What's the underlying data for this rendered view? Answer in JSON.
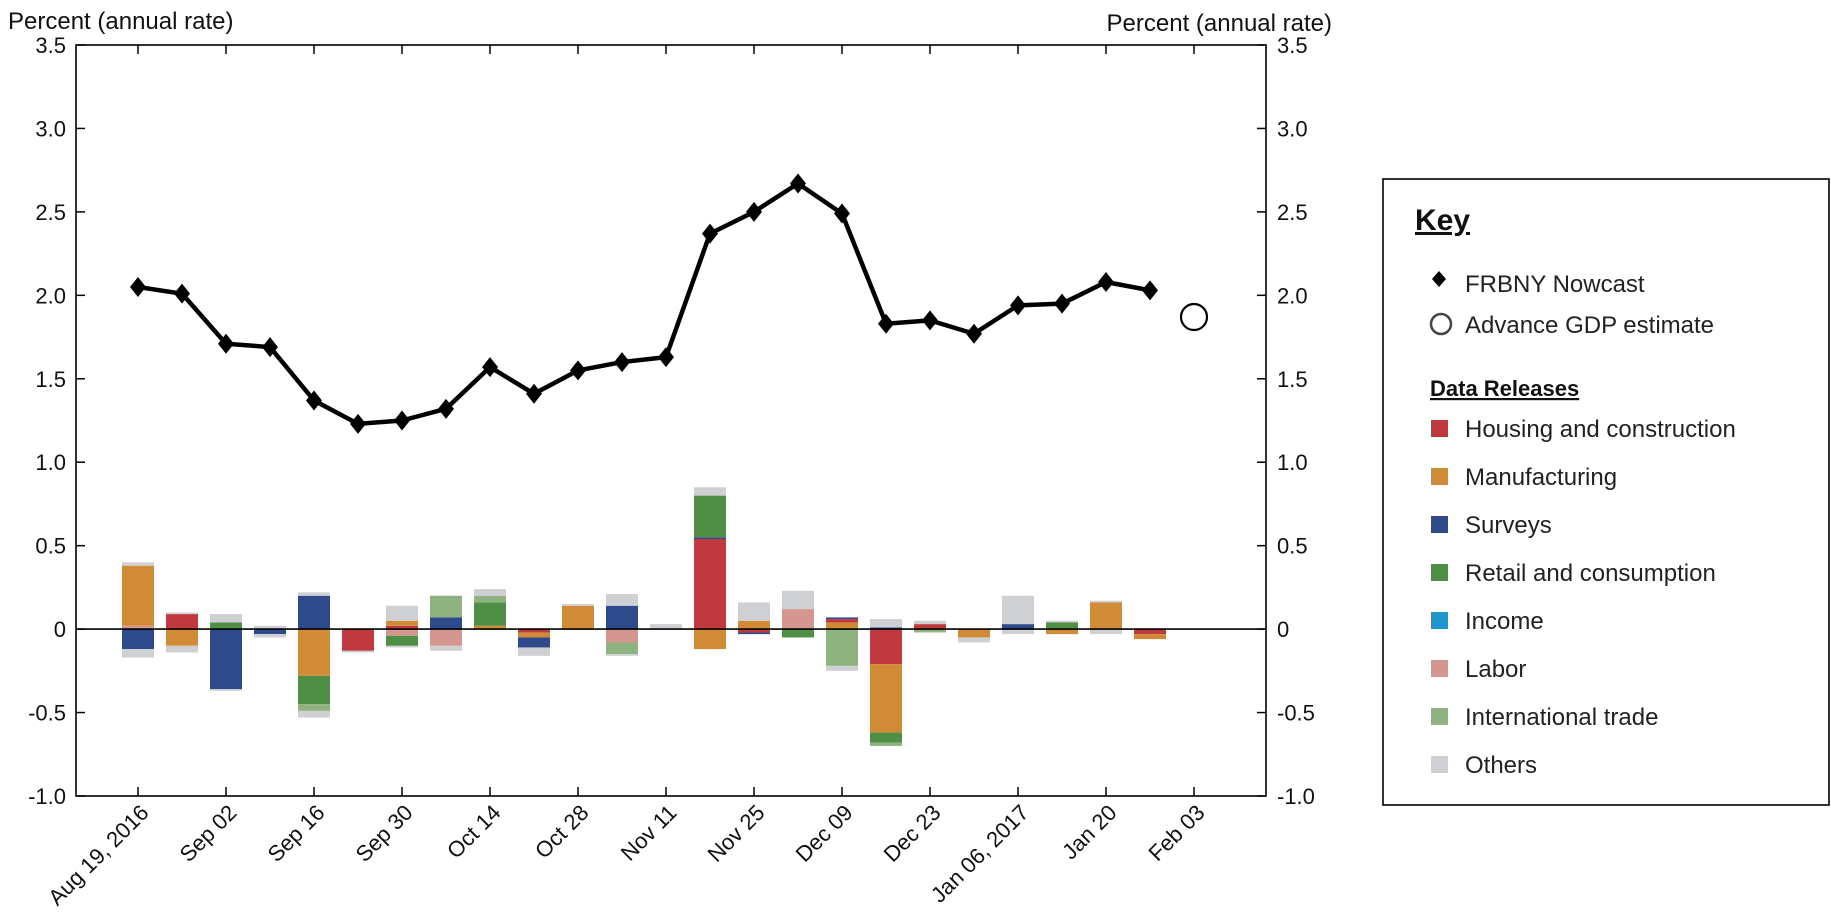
{
  "chart_data": {
    "type": "bar",
    "left_unit_label": "Percent (annual rate)",
    "right_unit_label": "Percent (annual rate)",
    "ylim": [
      -1.0,
      3.5
    ],
    "y_ticks": [
      3.5,
      3.0,
      2.5,
      2.0,
      1.5,
      1.0,
      0.5,
      0,
      -0.5,
      -1.0
    ],
    "y_tick_labels": [
      "3.5",
      "3.0",
      "2.5",
      "2.0",
      "1.5",
      "1.0",
      "0.5",
      "0",
      "-0.5",
      "-1.0"
    ],
    "x": [
      "Aug 19",
      "Aug 26",
      "Sep 02",
      "Sep 09",
      "Sep 16",
      "Sep 23",
      "Sep 30",
      "Oct 07",
      "Oct 14",
      "Oct 21",
      "Oct 28",
      "Nov 04",
      "Nov 11",
      "Nov 18",
      "Nov 25",
      "Dec 02",
      "Dec 09",
      "Dec 16",
      "Dec 23",
      "Dec 30",
      "Jan 06",
      "Jan 13",
      "Jan 20",
      "Jan 27",
      "Feb 03"
    ],
    "tick_labels": [
      "Aug 19, 2016",
      "Sep 02",
      "Sep 16",
      "Sep 30",
      "Oct 14",
      "Oct 28",
      "Nov 11",
      "Nov 25",
      "Dec 09",
      "Dec 23",
      "Jan 06, 2017",
      "Jan 20",
      "Feb 03"
    ],
    "tick_indices": [
      0,
      2,
      4,
      6,
      8,
      10,
      12,
      14,
      16,
      18,
      20,
      22,
      24
    ],
    "nowcast": {
      "name": "FRBNY Nowcast",
      "values": [
        2.05,
        2.01,
        1.71,
        1.69,
        1.37,
        1.23,
        1.25,
        1.32,
        1.57,
        1.41,
        1.55,
        1.6,
        1.63,
        2.37,
        2.5,
        2.67,
        2.49,
        1.83,
        1.85,
        1.77,
        1.94,
        1.95,
        2.08,
        2.03,
        null
      ],
      "color": "#000000"
    },
    "advance_gdp": {
      "name": "Advance GDP estimate",
      "x_index": 24,
      "value": 1.87
    },
    "stacks": [
      [
        {
          "c": "labor",
          "v": 0.02
        },
        {
          "c": "manufacturing",
          "v": 0.36
        },
        {
          "c": "others",
          "v": 0.02
        },
        {
          "c": "surveys",
          "v": -0.12
        },
        {
          "c": "others",
          "v": -0.05
        }
      ],
      [
        {
          "c": "housing",
          "v": 0.09
        },
        {
          "c": "others",
          "v": 0.01
        },
        {
          "c": "manufacturing",
          "v": -0.1
        },
        {
          "c": "others",
          "v": -0.04
        }
      ],
      [
        {
          "c": "retail",
          "v": 0.04
        },
        {
          "c": "others",
          "v": 0.05
        },
        {
          "c": "surveys",
          "v": -0.36
        },
        {
          "c": "others",
          "v": -0.01
        }
      ],
      [
        {
          "c": "others",
          "v": 0.02
        },
        {
          "c": "surveys",
          "v": -0.03
        },
        {
          "c": "others",
          "v": -0.02
        }
      ],
      [
        {
          "c": "surveys",
          "v": 0.2
        },
        {
          "c": "others",
          "v": 0.02
        },
        {
          "c": "manufacturing",
          "v": -0.28
        },
        {
          "c": "retail",
          "v": -0.17
        },
        {
          "c": "trade",
          "v": -0.04
        },
        {
          "c": "others",
          "v": -0.04
        }
      ],
      [
        {
          "c": "housing",
          "v": -0.13
        },
        {
          "c": "others",
          "v": -0.01
        }
      ],
      [
        {
          "c": "housing",
          "v": 0.02
        },
        {
          "c": "manufacturing",
          "v": 0.03
        },
        {
          "c": "others",
          "v": 0.09
        },
        {
          "c": "labor",
          "v": -0.04
        },
        {
          "c": "retail",
          "v": -0.06
        },
        {
          "c": "others",
          "v": -0.01
        }
      ],
      [
        {
          "c": "surveys",
          "v": 0.07
        },
        {
          "c": "trade",
          "v": 0.13
        },
        {
          "c": "labor",
          "v": -0.1
        },
        {
          "c": "others",
          "v": -0.03
        }
      ],
      [
        {
          "c": "manufacturing",
          "v": 0.02
        },
        {
          "c": "retail",
          "v": 0.14
        },
        {
          "c": "trade",
          "v": 0.04
        },
        {
          "c": "others",
          "v": 0.04
        }
      ],
      [
        {
          "c": "housing",
          "v": -0.02
        },
        {
          "c": "manufacturing",
          "v": -0.03
        },
        {
          "c": "surveys",
          "v": -0.06
        },
        {
          "c": "others",
          "v": -0.05
        }
      ],
      [
        {
          "c": "manufacturing",
          "v": 0.14
        },
        {
          "c": "others",
          "v": 0.01
        }
      ],
      [
        {
          "c": "surveys",
          "v": 0.14
        },
        {
          "c": "others",
          "v": 0.07
        },
        {
          "c": "labor",
          "v": -0.08
        },
        {
          "c": "trade",
          "v": -0.07
        },
        {
          "c": "others",
          "v": -0.01
        }
      ],
      [
        {
          "c": "others",
          "v": 0.03
        }
      ],
      [
        {
          "c": "housing",
          "v": 0.54
        },
        {
          "c": "surveys",
          "v": 0.01
        },
        {
          "c": "retail",
          "v": 0.25
        },
        {
          "c": "others",
          "v": 0.05
        },
        {
          "c": "manufacturing",
          "v": -0.12
        }
      ],
      [
        {
          "c": "manufacturing",
          "v": 0.05
        },
        {
          "c": "others",
          "v": 0.11
        },
        {
          "c": "housing",
          "v": -0.02
        },
        {
          "c": "surveys",
          "v": -0.01
        }
      ],
      [
        {
          "c": "labor",
          "v": 0.12
        },
        {
          "c": "others",
          "v": 0.11
        },
        {
          "c": "retail",
          "v": -0.05
        }
      ],
      [
        {
          "c": "manufacturing",
          "v": 0.04
        },
        {
          "c": "housing",
          "v": 0.02
        },
        {
          "c": "surveys",
          "v": 0.01
        },
        {
          "c": "trade",
          "v": -0.22
        },
        {
          "c": "others",
          "v": -0.03
        }
      ],
      [
        {
          "c": "surveys",
          "v": 0.01
        },
        {
          "c": "others",
          "v": 0.05
        },
        {
          "c": "housing",
          "v": -0.21
        },
        {
          "c": "manufacturing",
          "v": -0.41
        },
        {
          "c": "retail",
          "v": -0.06
        },
        {
          "c": "trade",
          "v": -0.02
        }
      ],
      [
        {
          "c": "housing",
          "v": 0.03
        },
        {
          "c": "others",
          "v": 0.02
        },
        {
          "c": "trade",
          "v": -0.02
        }
      ],
      [
        {
          "c": "manufacturing",
          "v": -0.05
        },
        {
          "c": "others",
          "v": -0.03
        }
      ],
      [
        {
          "c": "surveys",
          "v": 0.03
        },
        {
          "c": "others",
          "v": 0.17
        },
        {
          "c": "others",
          "v": -0.03
        }
      ],
      [
        {
          "c": "retail",
          "v": 0.04
        },
        {
          "c": "others",
          "v": 0.01
        },
        {
          "c": "manufacturing",
          "v": -0.03
        }
      ],
      [
        {
          "c": "manufacturing",
          "v": 0.16
        },
        {
          "c": "others",
          "v": 0.01
        },
        {
          "c": "others",
          "v": -0.03
        }
      ],
      [
        {
          "c": "housing",
          "v": -0.03
        },
        {
          "c": "manufacturing",
          "v": -0.03
        }
      ],
      []
    ]
  },
  "key": {
    "title": "Key",
    "nowcast_label": "FRBNY Nowcast",
    "advance_label": "Advance GDP estimate",
    "releases_title": "Data Releases",
    "categories": [
      {
        "id": "housing",
        "label": "Housing and construction",
        "color": "#c0393e"
      },
      {
        "id": "manufacturing",
        "label": "Manufacturing",
        "color": "#d18a36"
      },
      {
        "id": "surveys",
        "label": "Surveys",
        "color": "#2f4a8b"
      },
      {
        "id": "retail",
        "label": "Retail and consumption",
        "color": "#4f8e45"
      },
      {
        "id": "income",
        "label": "Income",
        "color": "#1f96d0"
      },
      {
        "id": "labor",
        "label": "Labor",
        "color": "#d4968f"
      },
      {
        "id": "trade",
        "label": "International trade",
        "color": "#8fb281"
      },
      {
        "id": "others",
        "label": "Others",
        "color": "#cfd0d4"
      }
    ]
  }
}
